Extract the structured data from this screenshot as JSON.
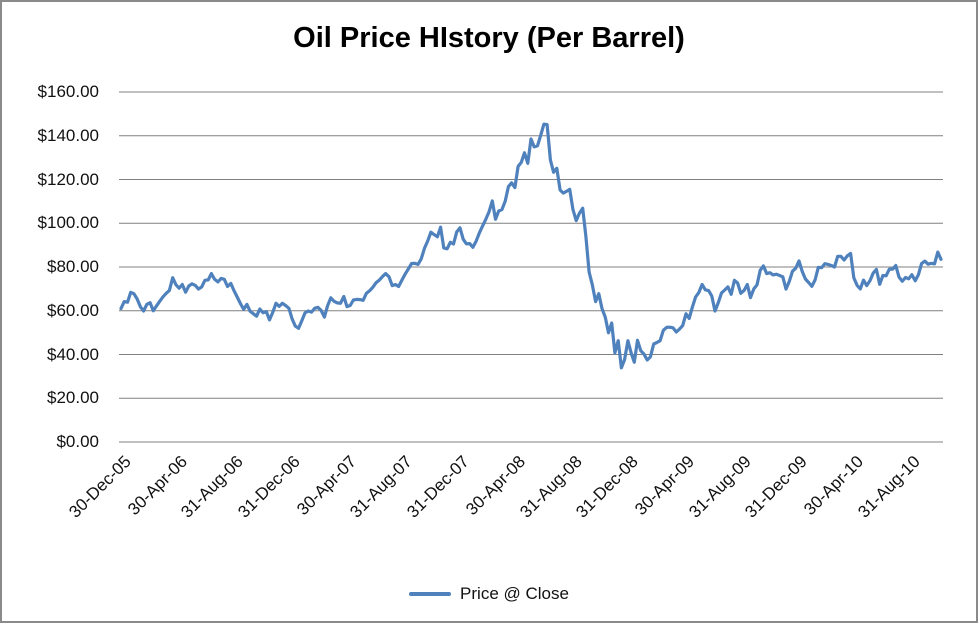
{
  "page": {
    "background": "#ffffff",
    "border_color": "#8a8a8a"
  },
  "chart_data": {
    "type": "line",
    "title": "Oil Price HIstory (Per Barrel)",
    "xlabel": "",
    "ylabel": "",
    "ylim": [
      0,
      160
    ],
    "y_step": 20,
    "grid": "horizontal",
    "gridline_color": "#808080",
    "text_color": "#111111",
    "legend_position": "bottom",
    "x_frequency": "weekly",
    "x_tick_labels": [
      "30-Dec-05",
      "30-Apr-06",
      "31-Aug-06",
      "31-Dec-06",
      "30-Apr-07",
      "31-Aug-07",
      "31-Dec-07",
      "30-Apr-08",
      "31-Aug-08",
      "31-Dec-08",
      "30-Apr-09",
      "31-Aug-09",
      "31-Dec-09",
      "30-Apr-10",
      "31-Aug-10"
    ],
    "y_tick_labels": [
      "$0.00",
      "$20.00",
      "$40.00",
      "$60.00",
      "$80.00",
      "$100.00",
      "$120.00",
      "$140.00",
      "$160.00"
    ],
    "series": [
      {
        "name": "Price @ Close",
        "color": "#4F81BD",
        "values": [
          61.0,
          64.2,
          63.9,
          68.4,
          67.8,
          65.4,
          61.8,
          59.9,
          62.9,
          63.7,
          60.0,
          62.2,
          64.3,
          66.4,
          68.0,
          69.3,
          75.1,
          71.9,
          70.3,
          72.0,
          68.5,
          71.3,
          72.3,
          71.6,
          69.9,
          70.9,
          73.9,
          74.1,
          77.0,
          74.4,
          73.2,
          74.8,
          74.4,
          71.1,
          72.5,
          69.2,
          66.3,
          63.3,
          60.6,
          62.9,
          59.8,
          58.6,
          57.5,
          60.8,
          59.1,
          59.6,
          55.8,
          59.2,
          63.4,
          62.0,
          63.4,
          62.4,
          61.1,
          56.3,
          53.0,
          52.0,
          55.4,
          59.0,
          59.9,
          59.4,
          61.1,
          61.6,
          60.1,
          57.1,
          62.3,
          65.9,
          64.3,
          63.6,
          63.4,
          66.5,
          61.9,
          62.4,
          64.9,
          65.2,
          65.1,
          64.8,
          68.0,
          69.1,
          70.7,
          72.8,
          74.0,
          75.6,
          77.0,
          75.5,
          71.5,
          72.0,
          71.1,
          74.0,
          76.7,
          79.1,
          81.6,
          81.7,
          81.2,
          83.7,
          88.6,
          91.9,
          95.9,
          94.8,
          93.8,
          98.2,
          88.7,
          88.3,
          91.3,
          90.5,
          96.0,
          97.9,
          92.7,
          90.6,
          90.7,
          89.0,
          91.8,
          95.5,
          98.8,
          101.8,
          105.2,
          110.2,
          101.8,
          105.6,
          106.2,
          110.1,
          116.7,
          118.5,
          116.3,
          126.0,
          127.8,
          132.2,
          127.4,
          138.5,
          134.9,
          135.4,
          140.2,
          145.3,
          145.1,
          128.9,
          123.3,
          125.1,
          115.2,
          113.8,
          114.6,
          115.5,
          106.2,
          101.2,
          104.6,
          106.9,
          93.9,
          77.7,
          71.9,
          64.2,
          67.8,
          61.0,
          57.0,
          49.9,
          54.4,
          40.8,
          46.3,
          33.9,
          37.7,
          46.3,
          40.8,
          36.5,
          46.5,
          41.7,
          40.2,
          37.5,
          38.9,
          44.8,
          45.5,
          46.3,
          51.1,
          52.4,
          52.5,
          52.2,
          50.3,
          51.6,
          53.2,
          58.6,
          56.5,
          61.7,
          66.3,
          68.4,
          72.0,
          69.6,
          69.2,
          66.7,
          59.9,
          63.6,
          68.1,
          69.5,
          70.9,
          67.5,
          73.9,
          72.7,
          68.0,
          69.3,
          72.0,
          66.0,
          70.0,
          71.8,
          78.5,
          80.5,
          77.0,
          77.4,
          76.4,
          76.7,
          76.1,
          75.5,
          69.9,
          73.4,
          78.1,
          79.4,
          82.8,
          78.0,
          74.5,
          72.9,
          71.2,
          74.1,
          79.8,
          79.7,
          81.5,
          81.2,
          80.7,
          80.0,
          84.9,
          84.9,
          83.2,
          85.1,
          86.2,
          75.1,
          71.6,
          70.0,
          74.0,
          71.5,
          73.8,
          77.2,
          78.9,
          72.1,
          76.1,
          76.0,
          79.0,
          79.0,
          80.7,
          75.4,
          73.5,
          75.2,
          74.6,
          76.5,
          73.7,
          76.5,
          81.6,
          82.7,
          81.3,
          81.7,
          81.4,
          86.8,
          83.5
        ]
      }
    ]
  }
}
